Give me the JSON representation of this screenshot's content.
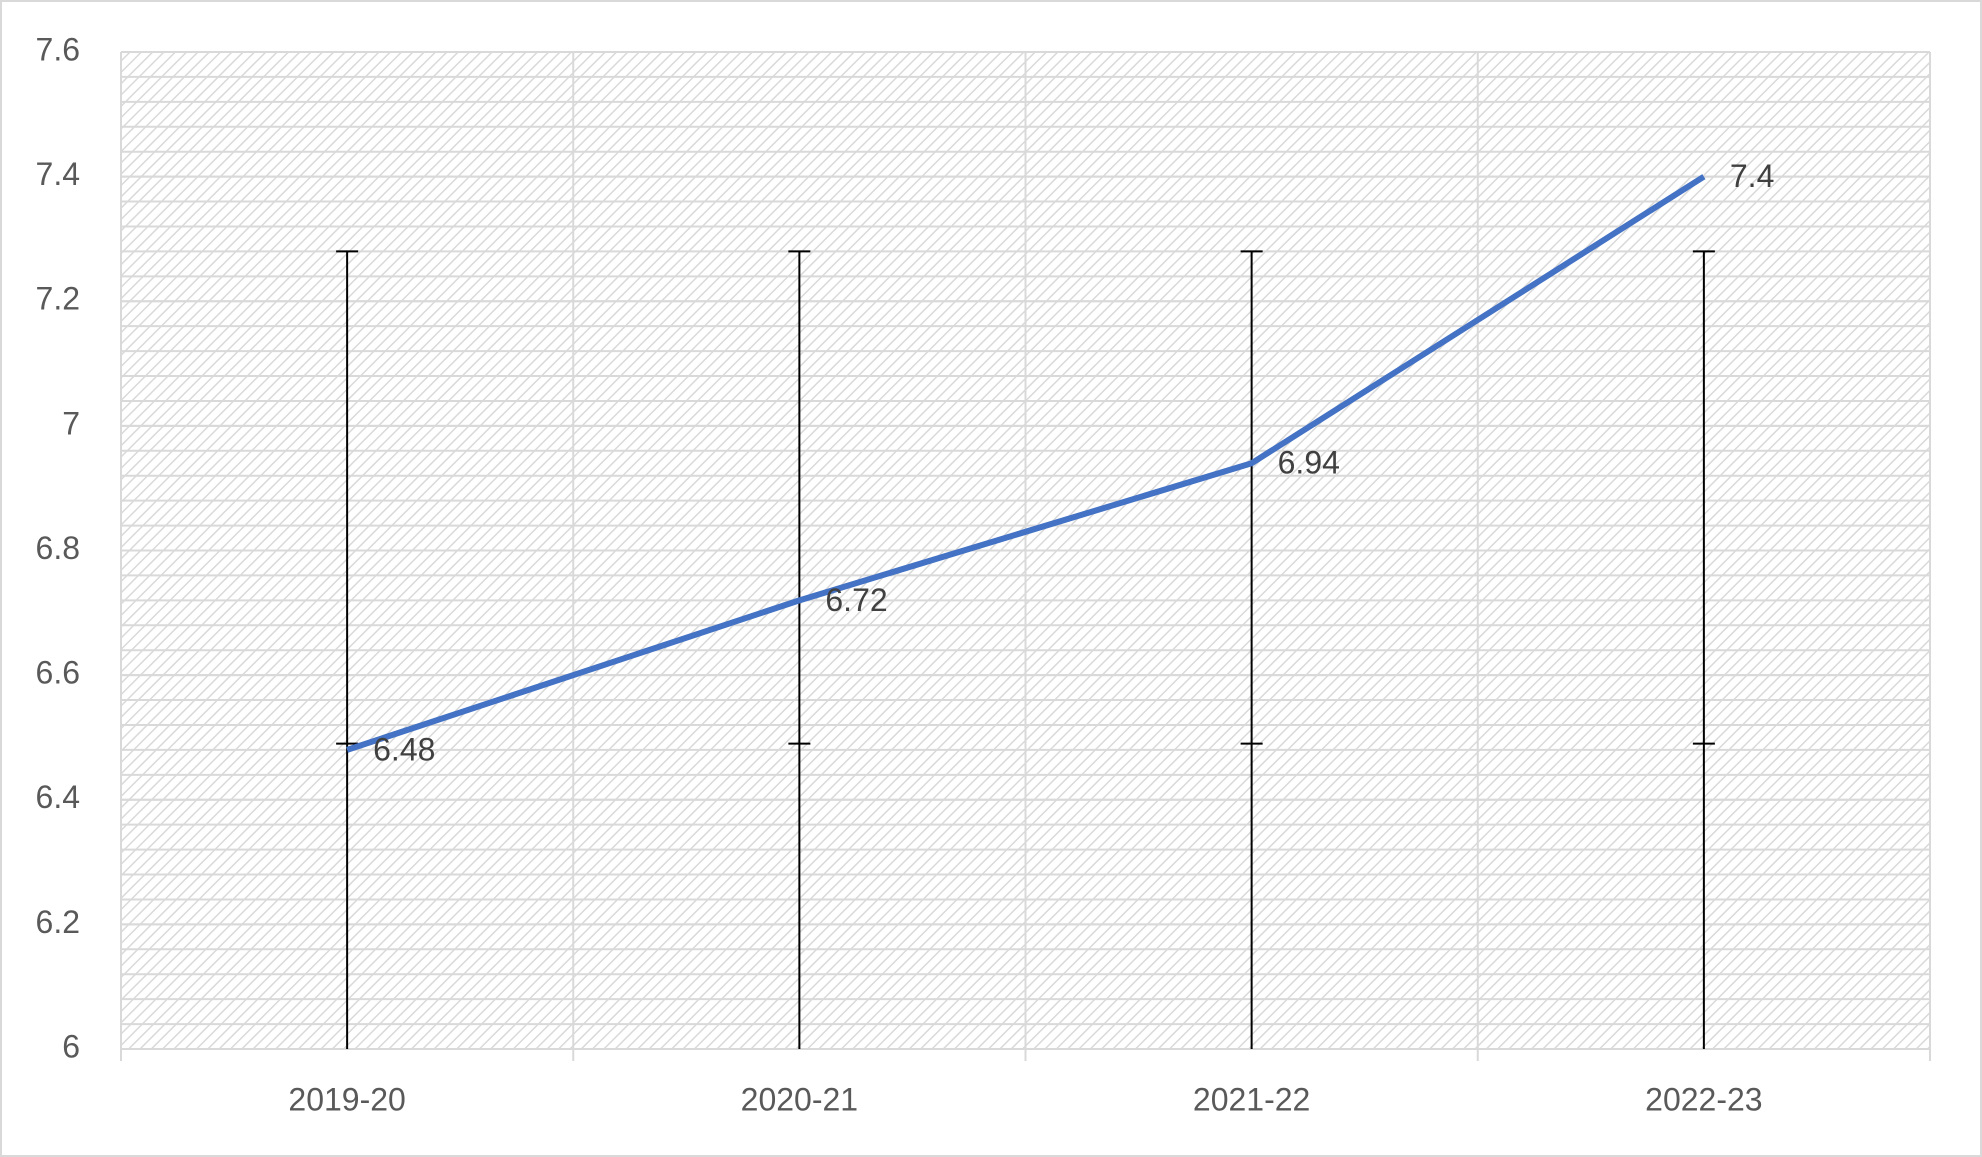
{
  "chart_data": {
    "type": "line",
    "categories": [
      "2019-20",
      "2020-21",
      "2021-22",
      "2022-23"
    ],
    "series": [
      {
        "values": [
          6.48,
          6.72,
          6.94,
          7.4
        ],
        "color": "#4472c4"
      }
    ],
    "error_bars": {
      "low": [
        6.49,
        6.49,
        6.49,
        6.49
      ],
      "high": [
        7.28,
        7.28,
        7.28,
        7.28
      ],
      "color": "#000000"
    },
    "ylim": [
      6,
      7.6
    ],
    "yticks": [
      6,
      6.2,
      6.4,
      6.6,
      6.8,
      7,
      7.2,
      7.4,
      7.6
    ],
    "grid": true
  }
}
